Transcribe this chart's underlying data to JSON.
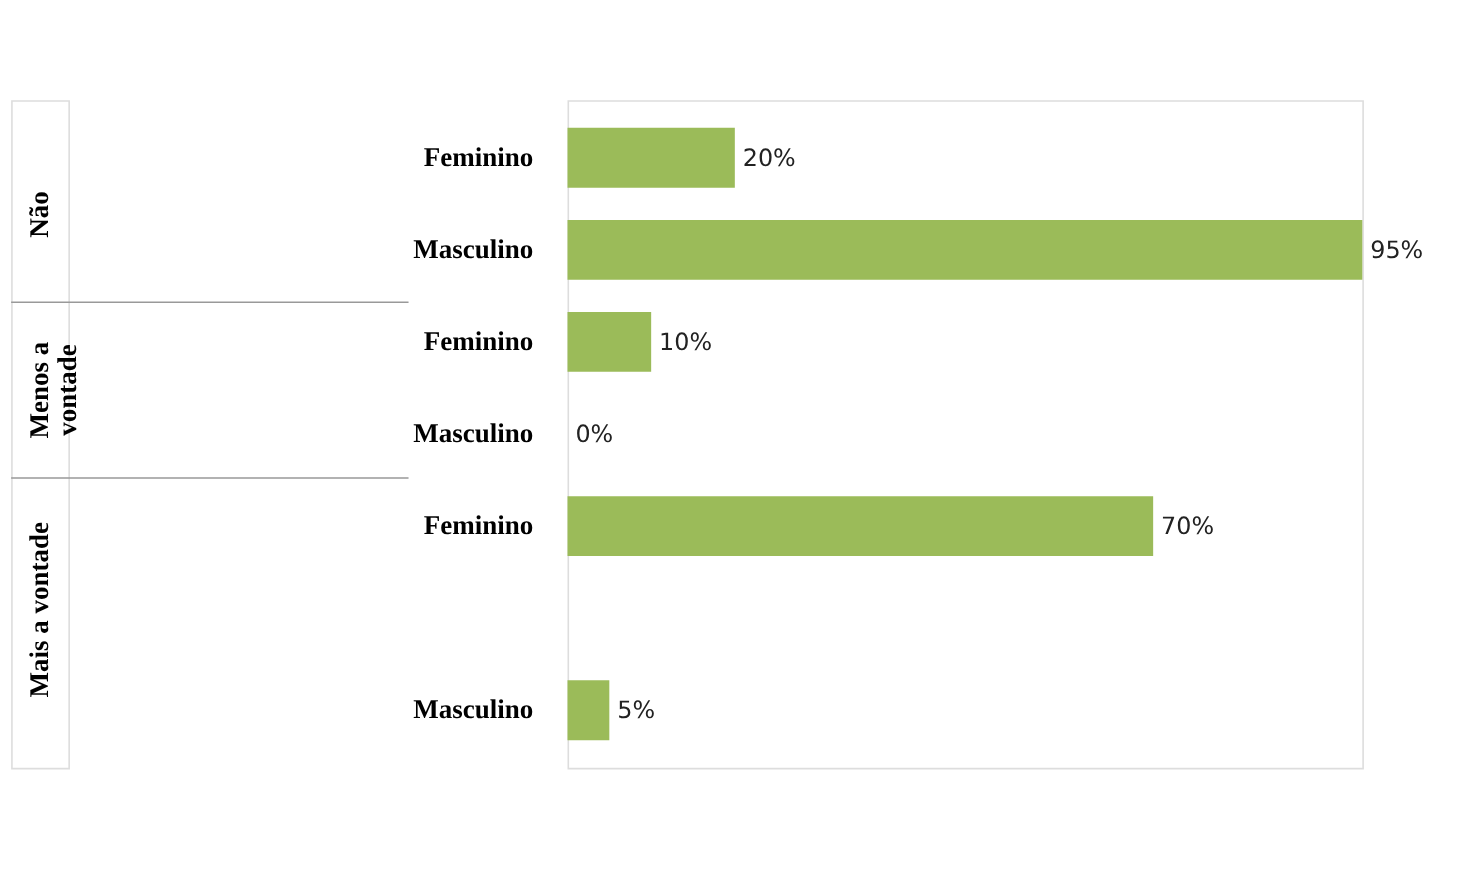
{
  "chart_data": {
    "type": "bar",
    "orientation": "horizontal",
    "color": "#9bbb59",
    "categories": [
      "Feminino",
      "Masculino",
      "Feminino",
      "Masculino",
      "Feminino",
      null,
      "Masculino"
    ],
    "values": [
      20,
      95,
      10,
      0,
      70,
      null,
      5
    ],
    "value_labels": [
      "20%",
      "95%",
      "10%",
      "0%",
      "70%",
      null,
      "5%"
    ],
    "annotations": [
      "Não",
      "Menos a\nvontade",
      "Mais a vontade"
    ],
    "grid": false
  }
}
